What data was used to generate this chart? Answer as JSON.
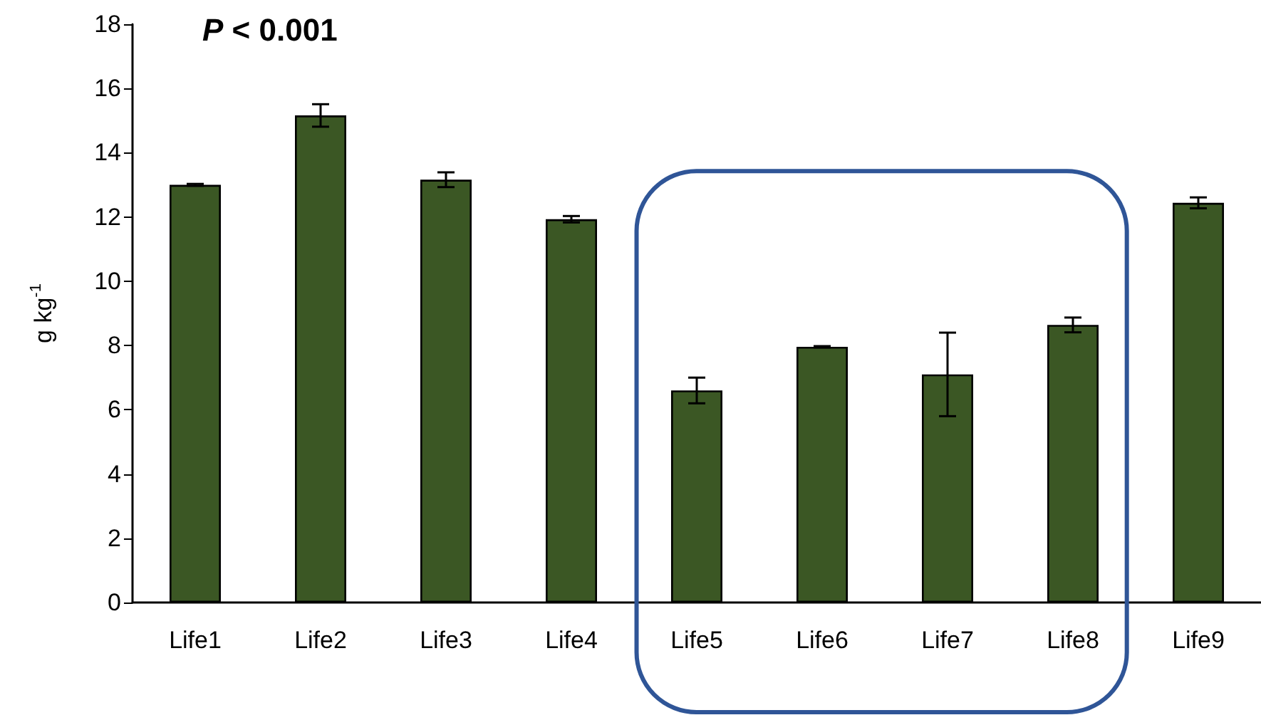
{
  "chart_data": {
    "type": "bar",
    "title": "P < 0.001",
    "ylabel": "g kg$^{-1}$",
    "categories": [
      "Life1",
      "Life2",
      "Life3",
      "Life4",
      "Life5",
      "Life6",
      "Life7",
      "Life8",
      "Life9"
    ],
    "values": [
      13.0,
      15.16,
      13.16,
      11.93,
      6.6,
      7.96,
      7.1,
      8.64,
      12.44
    ],
    "errors": [
      0.03,
      0.35,
      0.23,
      0.1,
      0.4,
      0.02,
      1.3,
      0.23,
      0.17
    ],
    "color": "#3b5724",
    "ylim": [
      0,
      18
    ],
    "yticks": [
      0,
      2,
      4,
      6,
      8,
      10,
      12,
      14,
      16,
      18
    ],
    "grid": false
  }
}
